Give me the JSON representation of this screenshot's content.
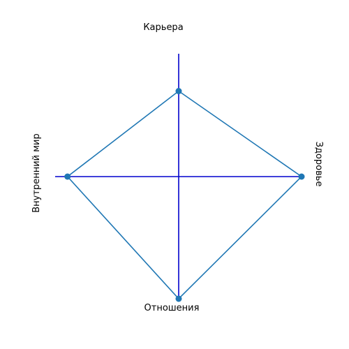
{
  "chart_data": {
    "type": "radar",
    "title": "",
    "axes": [
      {
        "name": "Карьера",
        "direction": "up",
        "value": 0.7
      },
      {
        "name": "Здоровье",
        "direction": "right",
        "value": 1.0
      },
      {
        "name": "Отношения",
        "direction": "down",
        "value": 1.0
      },
      {
        "name": "Внутренний мир",
        "direction": "left",
        "value": 0.9
      }
    ],
    "range": [
      0,
      1
    ],
    "colors": {
      "axis": "#0000cd",
      "series": "#1f77b4"
    }
  }
}
